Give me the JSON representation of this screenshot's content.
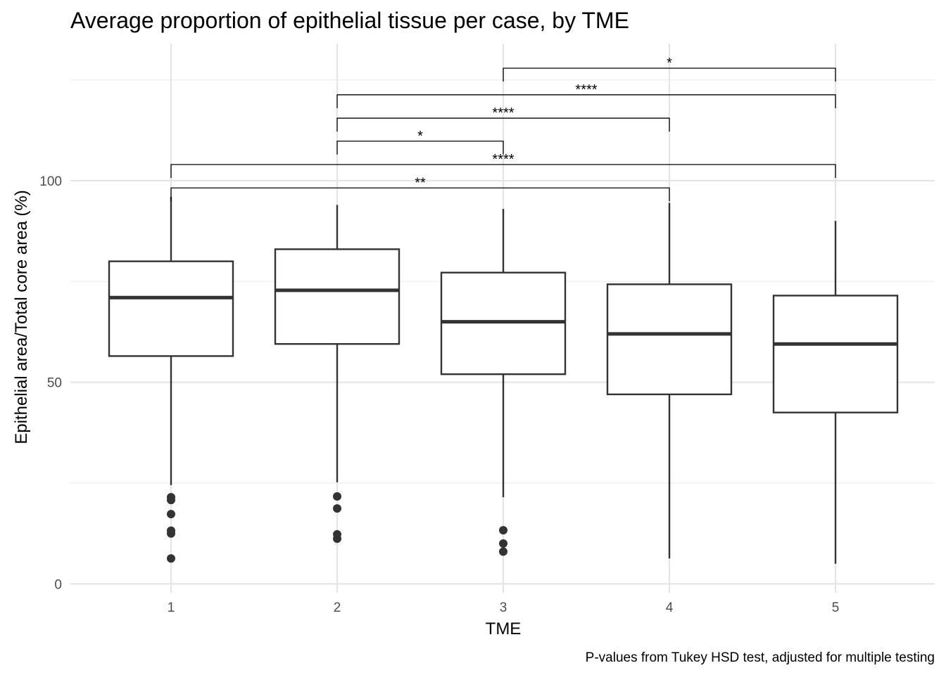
{
  "chart_data": {
    "type": "box",
    "title": "Average proportion of epithelial tissue per case, by TME",
    "xlabel": "TME",
    "ylabel": "Epithelial area/Total core area (%)",
    "caption": "P-values from Tukey HSD test, adjusted for multiple testing",
    "categories": [
      "1",
      "2",
      "3",
      "4",
      "5"
    ],
    "ylim": [
      -2.2,
      134
    ],
    "yticks": [
      0,
      50,
      100
    ],
    "ytick_labels": [
      "0",
      "50",
      "100"
    ],
    "grid": true,
    "legend": "none",
    "boxes": [
      {
        "category": "1",
        "min": 24.5,
        "q1": 56.5,
        "median": 71,
        "q3": 80,
        "max": 96,
        "outliers": [
          21.5,
          20.8,
          17.3,
          13.2,
          12.5,
          6.3
        ]
      },
      {
        "category": "2",
        "min": 25.2,
        "q1": 59.5,
        "median": 72.8,
        "q3": 83,
        "max": 94,
        "outliers": [
          21.7,
          18.7,
          12.3,
          11.2
        ]
      },
      {
        "category": "3",
        "min": 21.5,
        "q1": 52,
        "median": 65,
        "q3": 77.2,
        "max": 93,
        "outliers": [
          13.3,
          10,
          8
        ]
      },
      {
        "category": "4",
        "min": 6.3,
        "q1": 47,
        "median": 62,
        "q3": 74.3,
        "max": 94.5,
        "outliers": []
      },
      {
        "category": "5",
        "min": 5,
        "q1": 42.5,
        "median": 59.5,
        "q3": 71.5,
        "max": 90,
        "outliers": []
      }
    ],
    "comparisons": [
      {
        "group1": "1",
        "group2": "4",
        "y": 98.2,
        "label": "**"
      },
      {
        "group1": "1",
        "group2": "5",
        "y": 104,
        "label": "****"
      },
      {
        "group1": "2",
        "group2": "3",
        "y": 109.8,
        "label": "*"
      },
      {
        "group1": "2",
        "group2": "4",
        "y": 115.5,
        "label": "****"
      },
      {
        "group1": "2",
        "group2": "5",
        "y": 121.3,
        "label": "****"
      },
      {
        "group1": "3",
        "group2": "5",
        "y": 127.9,
        "label": "*"
      }
    ]
  }
}
